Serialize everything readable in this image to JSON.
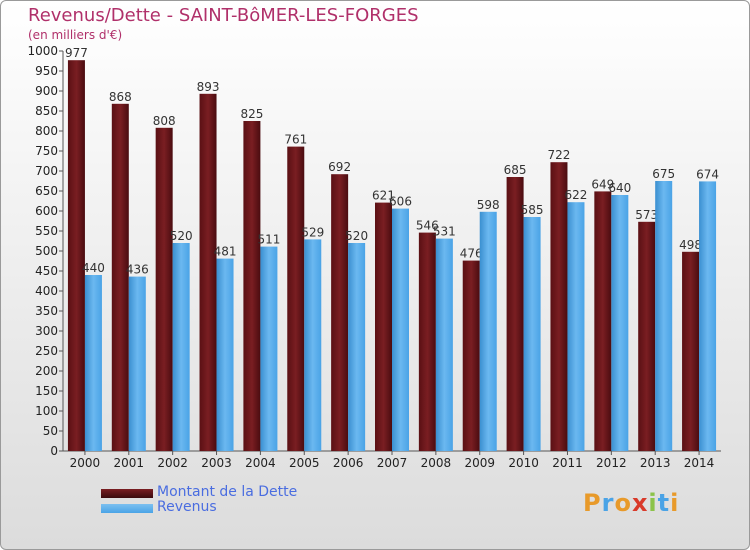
{
  "header": {
    "title": "Revenus/Dette - SAINT-BôMER-LES-FORGES",
    "subtitle": "(en milliers d'€)"
  },
  "chart_data": {
    "type": "bar",
    "title": "Revenus/Dette - SAINT-BôMER-LES-FORGES",
    "subtitle": "(en milliers d'€)",
    "categories": [
      "2000",
      "2001",
      "2002",
      "2003",
      "2004",
      "2005",
      "2006",
      "2007",
      "2008",
      "2009",
      "2010",
      "2011",
      "2012",
      "2013",
      "2014"
    ],
    "series": [
      {
        "name": "Montant de la Dette",
        "color": "#7a1e22",
        "values": [
          977,
          868,
          808,
          893,
          825,
          761,
          692,
          621,
          546,
          476,
          685,
          722,
          649,
          573,
          498
        ]
      },
      {
        "name": "Revenus",
        "color": "#4aa3e6",
        "values": [
          440,
          436,
          520,
          481,
          511,
          529,
          520,
          606,
          531,
          598,
          585,
          622,
          640,
          675,
          674
        ]
      }
    ],
    "ylim": [
      0,
      1000
    ],
    "ytick_step": 50,
    "grid": false,
    "legend_position": "bottom-left"
  },
  "legend": {
    "items": [
      {
        "label": "Montant de la Dette",
        "color": "#7a1e22"
      },
      {
        "label": "Revenus",
        "color": "#4aa3e6"
      }
    ]
  },
  "logo": {
    "text": "Proxiti",
    "letters": [
      "P",
      "r",
      "o",
      "x",
      "i",
      "t",
      "i"
    ],
    "colors": [
      "#e89a2a",
      "#4aa3e6",
      "#e89a2a",
      "#d93a2a",
      "#8cc34a",
      "#4aa3e6",
      "#e89a2a"
    ]
  }
}
